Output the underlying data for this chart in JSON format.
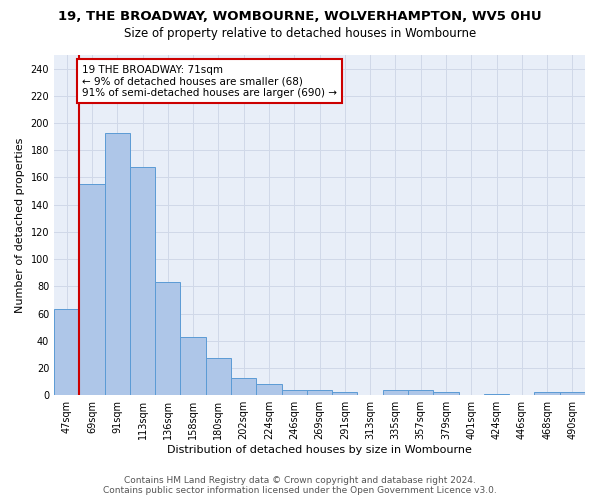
{
  "title": "19, THE BROADWAY, WOMBOURNE, WOLVERHAMPTON, WV5 0HU",
  "subtitle": "Size of property relative to detached houses in Wombourne",
  "xlabel": "Distribution of detached houses by size in Wombourne",
  "ylabel": "Number of detached properties",
  "categories": [
    "47sqm",
    "69sqm",
    "91sqm",
    "113sqm",
    "136sqm",
    "158sqm",
    "180sqm",
    "202sqm",
    "224sqm",
    "246sqm",
    "269sqm",
    "291sqm",
    "313sqm",
    "335sqm",
    "357sqm",
    "379sqm",
    "401sqm",
    "424sqm",
    "446sqm",
    "468sqm",
    "490sqm"
  ],
  "values": [
    63,
    155,
    193,
    168,
    83,
    43,
    27,
    13,
    8,
    4,
    4,
    2,
    0,
    4,
    4,
    2,
    0,
    1,
    0,
    2,
    2
  ],
  "bar_color": "#aec6e8",
  "bar_edge_color": "#5b9bd5",
  "highlight_color": "#cc0000",
  "annotation_text": "19 THE BROADWAY: 71sqm\n← 9% of detached houses are smaller (68)\n91% of semi-detached houses are larger (690) →",
  "annotation_box_color": "#ffffff",
  "annotation_box_edge_color": "#cc0000",
  "ylim": [
    0,
    250
  ],
  "yticks": [
    0,
    20,
    40,
    60,
    80,
    100,
    120,
    140,
    160,
    180,
    200,
    220,
    240
  ],
  "grid_color": "#d0d8e8",
  "background_color": "#e8eef8",
  "footer_line1": "Contains HM Land Registry data © Crown copyright and database right 2024.",
  "footer_line2": "Contains public sector information licensed under the Open Government Licence v3.0.",
  "title_fontsize": 9.5,
  "subtitle_fontsize": 8.5,
  "axis_label_fontsize": 8,
  "tick_fontsize": 7,
  "annotation_fontsize": 7.5,
  "footer_fontsize": 6.5
}
